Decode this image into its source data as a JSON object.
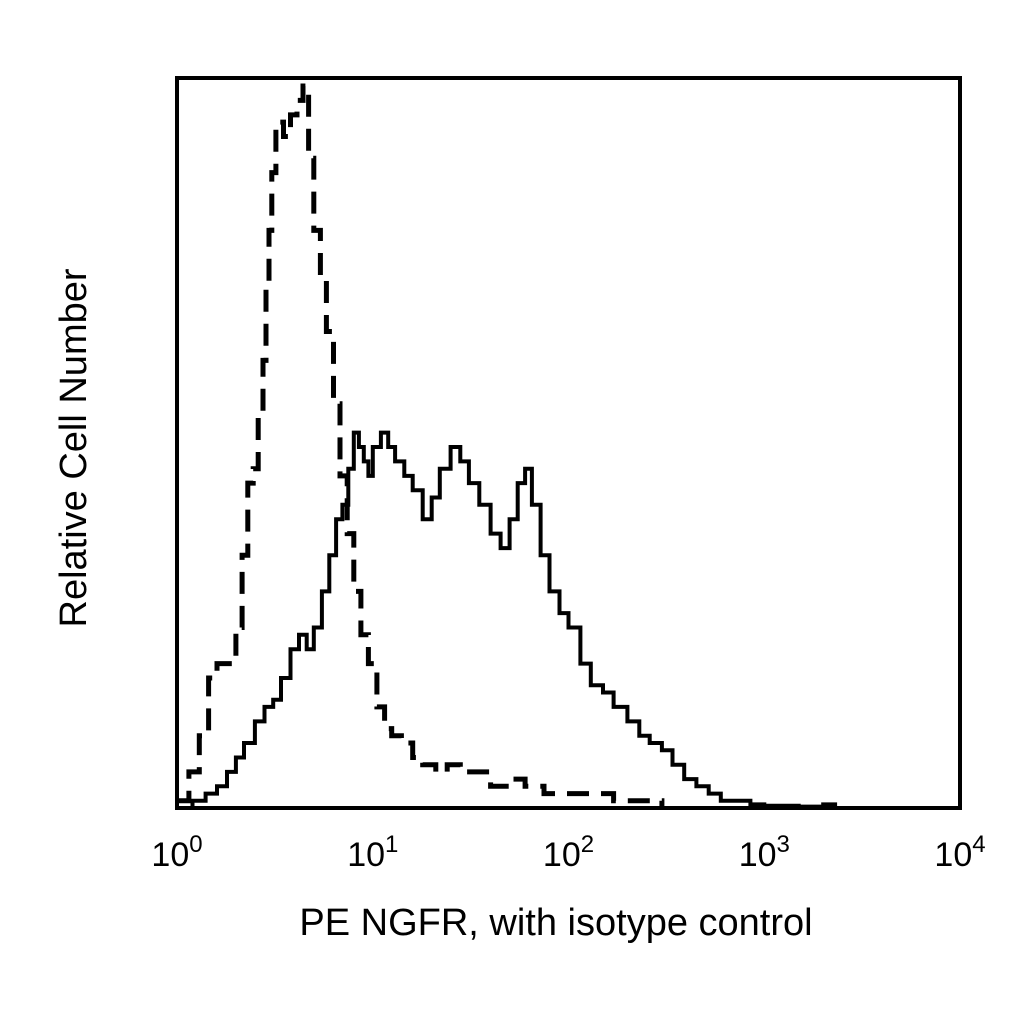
{
  "chart_data": {
    "type": "histogram",
    "title": "",
    "xlabel": "PE NGFR, with isotype control",
    "ylabel": "Relative Cell Number",
    "x_scale": "log",
    "xlim": [
      1,
      10000
    ],
    "ylim": [
      0,
      100
    ],
    "y_ticks_shown": false,
    "x_ticks": [
      {
        "value": 1,
        "base": "10",
        "exp": "0"
      },
      {
        "value": 10,
        "base": "10",
        "exp": "1"
      },
      {
        "value": 100,
        "base": "10",
        "exp": "2"
      },
      {
        "value": 1000,
        "base": "10",
        "exp": "3"
      },
      {
        "value": 10000,
        "base": "10",
        "exp": "4"
      }
    ],
    "series": [
      {
        "style": "dashed",
        "color": "#000000",
        "points": [
          [
            1.0,
            1
          ],
          [
            1.15,
            5
          ],
          [
            1.3,
            10
          ],
          [
            1.45,
            18
          ],
          [
            1.6,
            20
          ],
          [
            1.8,
            20
          ],
          [
            2.0,
            25
          ],
          [
            2.15,
            35
          ],
          [
            2.3,
            45
          ],
          [
            2.45,
            47
          ],
          [
            2.6,
            55
          ],
          [
            2.75,
            62
          ],
          [
            2.85,
            72
          ],
          [
            2.95,
            80
          ],
          [
            3.05,
            88
          ],
          [
            3.2,
            95
          ],
          [
            3.5,
            93
          ],
          [
            3.8,
            96
          ],
          [
            4.1,
            98
          ],
          [
            4.4,
            100
          ],
          [
            4.7,
            90
          ],
          [
            5.0,
            80
          ],
          [
            5.4,
            73
          ],
          [
            5.8,
            66
          ],
          [
            6.3,
            56
          ],
          [
            6.8,
            46
          ],
          [
            7.4,
            38
          ],
          [
            8.0,
            30
          ],
          [
            8.7,
            24
          ],
          [
            9.5,
            20
          ],
          [
            10.5,
            14
          ],
          [
            11.5,
            11
          ],
          [
            12.5,
            10
          ],
          [
            14,
            9
          ],
          [
            16,
            7
          ],
          [
            18,
            6
          ],
          [
            21,
            5
          ],
          [
            24,
            6
          ],
          [
            28,
            5
          ],
          [
            33,
            5
          ],
          [
            40,
            3
          ],
          [
            50,
            4
          ],
          [
            60,
            3
          ],
          [
            75,
            2
          ],
          [
            100,
            2
          ],
          [
            130,
            2
          ],
          [
            170,
            1
          ],
          [
            220,
            1
          ],
          [
            300,
            0
          ]
        ]
      },
      {
        "style": "solid",
        "color": "#000000",
        "points": [
          [
            1.0,
            0
          ],
          [
            1.2,
            1
          ],
          [
            1.4,
            2
          ],
          [
            1.6,
            3
          ],
          [
            1.8,
            5
          ],
          [
            2.0,
            7
          ],
          [
            2.2,
            9
          ],
          [
            2.5,
            12
          ],
          [
            2.8,
            14
          ],
          [
            3.1,
            15
          ],
          [
            3.4,
            18
          ],
          [
            3.8,
            22
          ],
          [
            4.2,
            24
          ],
          [
            4.6,
            22
          ],
          [
            5.0,
            25
          ],
          [
            5.5,
            30
          ],
          [
            6.0,
            35
          ],
          [
            6.5,
            40
          ],
          [
            7.0,
            42
          ],
          [
            7.5,
            47
          ],
          [
            8.0,
            52
          ],
          [
            8.5,
            50
          ],
          [
            9.0,
            48
          ],
          [
            9.5,
            46
          ],
          [
            10.0,
            50
          ],
          [
            11.0,
            52
          ],
          [
            12.0,
            50
          ],
          [
            13.0,
            48
          ],
          [
            14.5,
            46
          ],
          [
            16.0,
            44
          ],
          [
            18.0,
            40
          ],
          [
            20.0,
            43
          ],
          [
            22.0,
            47
          ],
          [
            25.0,
            50
          ],
          [
            28.0,
            48
          ],
          [
            31.0,
            45
          ],
          [
            35.0,
            42
          ],
          [
            40.0,
            38
          ],
          [
            45.0,
            36
          ],
          [
            50.0,
            40
          ],
          [
            55.0,
            45
          ],
          [
            60.0,
            47
          ],
          [
            65.0,
            42
          ],
          [
            72.0,
            35
          ],
          [
            80.0,
            30
          ],
          [
            90.0,
            27
          ],
          [
            100,
            25
          ],
          [
            115,
            20
          ],
          [
            130,
            17
          ],
          [
            150,
            16
          ],
          [
            170,
            14
          ],
          [
            200,
            12
          ],
          [
            230,
            10
          ],
          [
            260,
            9
          ],
          [
            300,
            8
          ],
          [
            340,
            6
          ],
          [
            390,
            4
          ],
          [
            450,
            3
          ],
          [
            520,
            2
          ],
          [
            600,
            1
          ],
          [
            700,
            1
          ],
          [
            850,
            0.5
          ],
          [
            1000,
            0.3
          ],
          [
            1500,
            0.2
          ],
          [
            2000,
            0.5
          ],
          [
            2300,
            0
          ]
        ]
      }
    ]
  }
}
